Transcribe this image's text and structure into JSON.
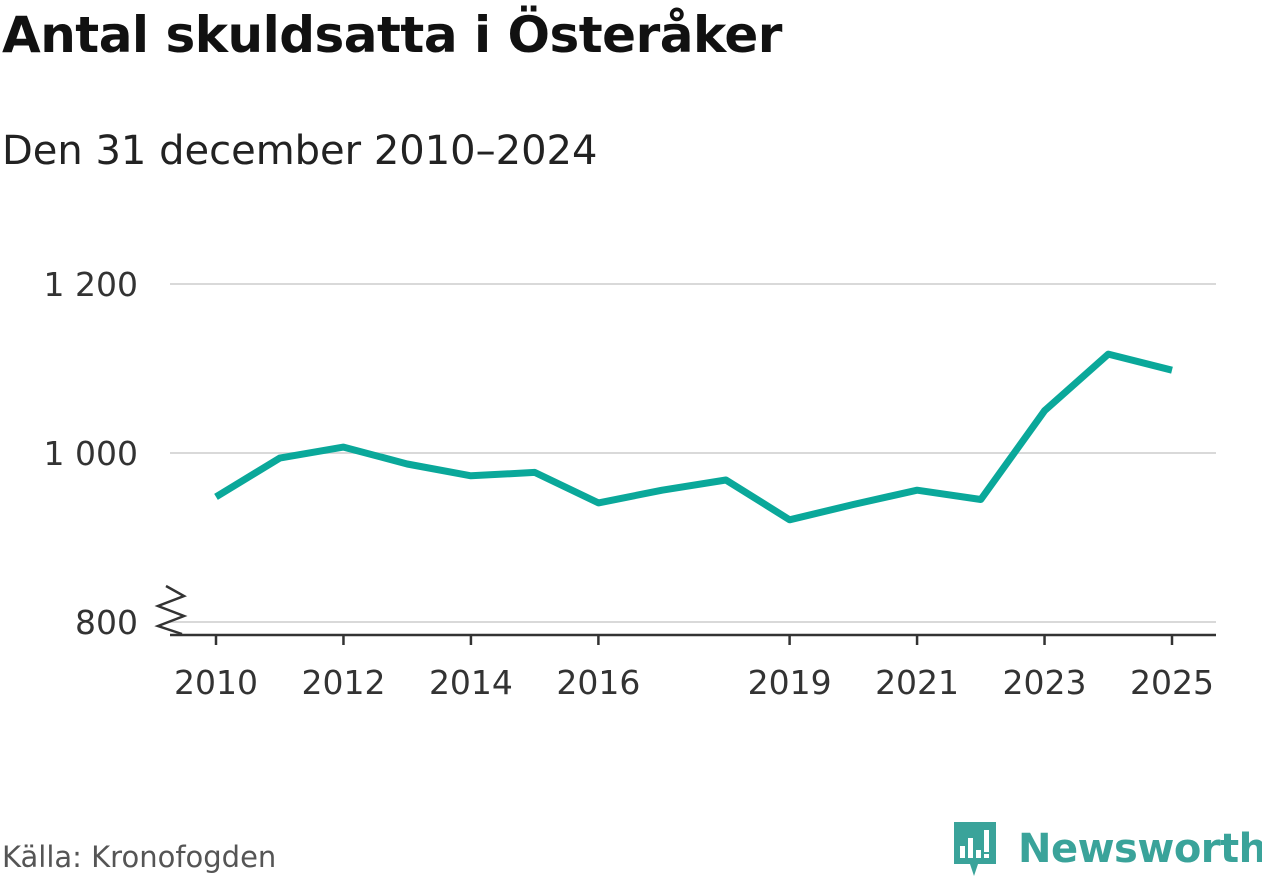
{
  "header": {
    "title": "Antal skuldsatta i Österåker",
    "subtitle": "Den 31 december 2010–2024"
  },
  "footer": {
    "source": "Källa: Kronofogden",
    "brand": "Newsworthy",
    "brand_icon": "newsworthy-logo-icon"
  },
  "colors": {
    "line": "#0aa89a",
    "grid": "#d9d9d9",
    "axis": "#333333",
    "brand": "#3aa39a"
  },
  "chart_data": {
    "type": "line",
    "title": "Antal skuldsatta i Österåker",
    "subtitle": "Den 31 december 2010–2024",
    "xlabel": "",
    "ylabel": "",
    "xlim": [
      2010,
      2025
    ],
    "ylim": [
      800,
      1200
    ],
    "y_axis_break": true,
    "grid": "horizontal",
    "x_ticks": [
      2010,
      2012,
      2014,
      2016,
      2019,
      2021,
      2023,
      2025
    ],
    "y_ticks": [
      800,
      1000,
      1200
    ],
    "y_tick_labels": [
      "800",
      "1 000",
      "1 200"
    ],
    "series": [
      {
        "name": "Antal skuldsatta",
        "x": [
          2010,
          2011,
          2012,
          2013,
          2014,
          2015,
          2016,
          2017,
          2018,
          2019,
          2020,
          2021,
          2022,
          2023,
          2024,
          2025
        ],
        "values": [
          948,
          994,
          1007,
          987,
          973,
          977,
          941,
          956,
          968,
          921,
          939,
          956,
          945,
          1050,
          1117,
          1098
        ]
      }
    ]
  }
}
